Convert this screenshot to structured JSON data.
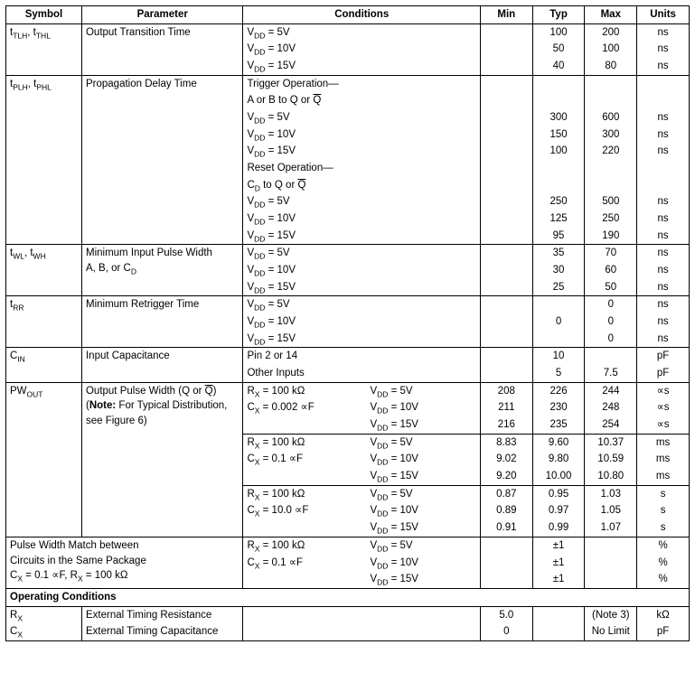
{
  "headers": {
    "symbol": "Symbol",
    "parameter": "Parameter",
    "conditions": "Conditions",
    "min": "Min",
    "typ": "Typ",
    "max": "Max",
    "units": "Units"
  },
  "sym": {
    "ttlh": "t",
    "ttlh_sub": "TLH",
    "tthl": ", t",
    "tthl_sub": "THL",
    "tplh": "t",
    "tplh_sub": "PLH",
    "tphl": ", t",
    "tphl_sub": "PHL",
    "twl": "t",
    "twl_sub": "WL",
    "twh": ", t",
    "twh_sub": "WH",
    "trr": "t",
    "trr_sub": "RR",
    "cin": "C",
    "cin_sub": "IN",
    "pwout": "PW",
    "pwout_sub": "OUT",
    "rx": "R",
    "rx_sub": "X",
    "cx": "C",
    "cx_sub": "X"
  },
  "par": {
    "ott": "Output Transition Time",
    "pdt": "Propagation Delay Time",
    "mipw1": "Minimum Input Pulse Width",
    "mipw2": "A, B, or C",
    "mipw2_sub": "D",
    "mrt": "Minimum Retrigger Time",
    "ic": "Input Capacitance",
    "opw1a": "Output Pulse Width (Q or ",
    "opw1b": "Q",
    "opw1c": ")",
    "opw2a": "(",
    "opw2b": "Note:",
    "opw2c": " For Typical Distribution,",
    "opw3": "see Figure 6)",
    "pwm1": "Pulse Width Match between",
    "pwm2": "Circuits in the Same Package",
    "pwm3a": "C",
    "pwm3b": " = 0.1 ∝F, R",
    "pwm3c": " = 100 kΩ",
    "opc": "Operating Conditions",
    "etr": "External Timing Resistance",
    "etc": "External Timing Capacitance"
  },
  "cond": {
    "vdd": "V",
    "vdd_sub": "DD",
    "eq5": " = 5V",
    "eq10": " = 10V",
    "eq15": " = 15V",
    "trig": "Trigger Operation—",
    "abtoq1": "A or B to Q or ",
    "abtoq2": "Q",
    "reset": "Reset Operation—",
    "cdtoq1": "C",
    "cdtoq1_sub": "D",
    "cdtoq2": " to Q or ",
    "cdtoq3": "Q",
    "pin2": "Pin 2 or 14",
    "other": "Other Inputs",
    "rx100": "R",
    "rx100b": " = 100 kΩ",
    "cx0002": "C",
    "cx0002b": " = 0.002 ∝F",
    "cx01": "C",
    "cx01b": " = 0.1 ∝F",
    "cx10": "C",
    "cx10b": " = 10.0 ∝F"
  },
  "v": {
    "r1": {
      "typ": "100",
      "max": "200",
      "u": "ns"
    },
    "r2": {
      "typ": "50",
      "max": "100",
      "u": "ns"
    },
    "r3": {
      "typ": "40",
      "max": "80",
      "u": "ns"
    },
    "r4": {
      "typ": "300",
      "max": "600",
      "u": "ns"
    },
    "r5": {
      "typ": "150",
      "max": "300",
      "u": "ns"
    },
    "r6": {
      "typ": "100",
      "max": "220",
      "u": "ns"
    },
    "r7": {
      "typ": "250",
      "max": "500",
      "u": "ns"
    },
    "r8": {
      "typ": "125",
      "max": "250",
      "u": "ns"
    },
    "r9": {
      "typ": "95",
      "max": "190",
      "u": "ns"
    },
    "r10": {
      "typ": "35",
      "max": "70",
      "u": "ns"
    },
    "r11": {
      "typ": "30",
      "max": "60",
      "u": "ns"
    },
    "r12": {
      "typ": "25",
      "max": "50",
      "u": "ns"
    },
    "r13": {
      "max": "0",
      "u": "ns"
    },
    "r14": {
      "typ": "0",
      "max": "0",
      "u": "ns"
    },
    "r15": {
      "max": "0",
      "u": "ns"
    },
    "r16": {
      "typ": "10",
      "u": "pF"
    },
    "r17": {
      "typ": "5",
      "max": "7.5",
      "u": "pF"
    },
    "r18": {
      "min": "208",
      "typ": "226",
      "max": "244",
      "u": "∝s"
    },
    "r19": {
      "min": "211",
      "typ": "230",
      "max": "248",
      "u": "∝s"
    },
    "r20": {
      "min": "216",
      "typ": "235",
      "max": "254",
      "u": "∝s"
    },
    "r21": {
      "min": "8.83",
      "typ": "9.60",
      "max": "10.37",
      "u": "ms"
    },
    "r22": {
      "min": "9.02",
      "typ": "9.80",
      "max": "10.59",
      "u": "ms"
    },
    "r23": {
      "min": "9.20",
      "typ": "10.00",
      "max": "10.80",
      "u": "ms"
    },
    "r24": {
      "min": "0.87",
      "typ": "0.95",
      "max": "1.03",
      "u": "s"
    },
    "r25": {
      "min": "0.89",
      "typ": "0.97",
      "max": "1.05",
      "u": "s"
    },
    "r26": {
      "min": "0.91",
      "typ": "0.99",
      "max": "1.07",
      "u": "s"
    },
    "r27": {
      "typ": "±1",
      "u": "%"
    },
    "r28": {
      "typ": "±1",
      "u": "%"
    },
    "r29": {
      "typ": "±1",
      "u": "%"
    },
    "r30": {
      "min": "5.0",
      "max": "(Note 3)",
      "u": "kΩ"
    },
    "r31": {
      "min": "0",
      "max": "No Limit",
      "u": "pF"
    }
  }
}
